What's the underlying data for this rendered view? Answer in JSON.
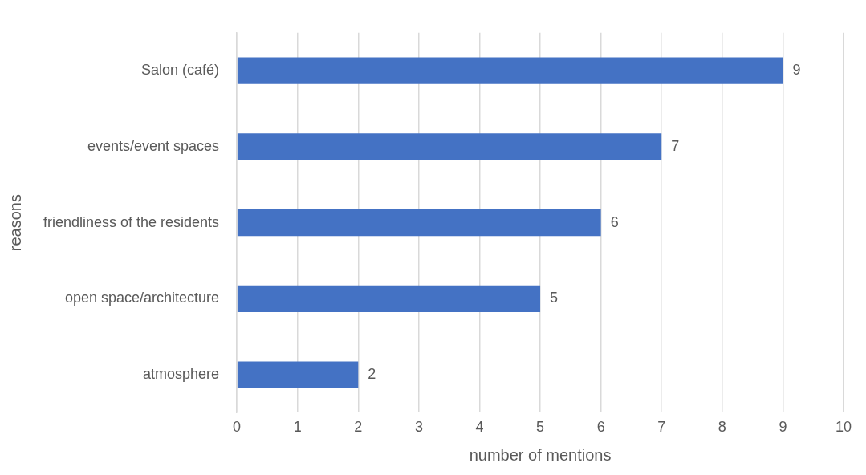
{
  "chart_data": {
    "type": "bar",
    "orientation": "horizontal",
    "categories": [
      "Salon (café)",
      "events/event spaces",
      "friendliness of the residents",
      "open space/architecture",
      "atmosphere"
    ],
    "values": [
      9,
      7,
      6,
      5,
      2
    ],
    "color": "#4472c4",
    "xlim": [
      0,
      10
    ],
    "xticks": [
      0,
      1,
      2,
      3,
      4,
      5,
      6,
      7,
      8,
      9,
      10
    ],
    "xlabel": "number of mentions",
    "ylabel": "reasons",
    "grid": "x",
    "data_labels": true
  }
}
